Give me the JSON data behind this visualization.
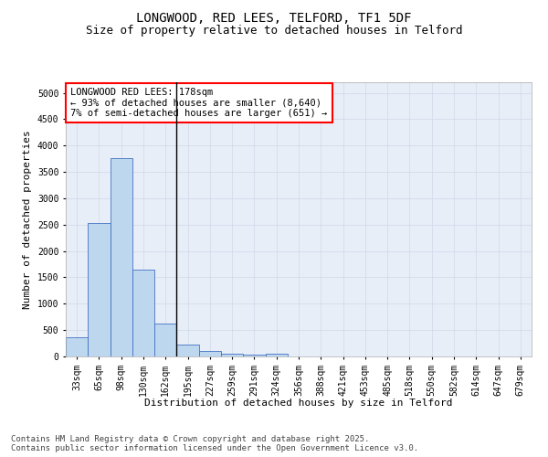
{
  "title1": "LONGWOOD, RED LEES, TELFORD, TF1 5DF",
  "title2": "Size of property relative to detached houses in Telford",
  "xlabel": "Distribution of detached houses by size in Telford",
  "ylabel": "Number of detached properties",
  "categories": [
    "33sqm",
    "65sqm",
    "98sqm",
    "130sqm",
    "162sqm",
    "195sqm",
    "227sqm",
    "259sqm",
    "291sqm",
    "324sqm",
    "356sqm",
    "388sqm",
    "421sqm",
    "453sqm",
    "485sqm",
    "518sqm",
    "550sqm",
    "582sqm",
    "614sqm",
    "647sqm",
    "679sqm"
  ],
  "values": [
    370,
    2530,
    3760,
    1650,
    620,
    225,
    105,
    45,
    35,
    55,
    0,
    0,
    0,
    0,
    0,
    0,
    0,
    0,
    0,
    0,
    0
  ],
  "bar_color": "#bdd7ee",
  "bar_edge_color": "#4472c4",
  "vline_color": "black",
  "vline_x_index": 4.5,
  "annotation_text": "LONGWOOD RED LEES: 178sqm\n← 93% of detached houses are smaller (8,640)\n7% of semi-detached houses are larger (651) →",
  "annotation_box_color": "white",
  "annotation_box_edge_color": "red",
  "ylim": [
    0,
    5200
  ],
  "yticks": [
    0,
    500,
    1000,
    1500,
    2000,
    2500,
    3000,
    3500,
    4000,
    4500,
    5000
  ],
  "grid_color": "#d0d8e8",
  "bg_color": "#e8eef8",
  "footer_text": "Contains HM Land Registry data © Crown copyright and database right 2025.\nContains public sector information licensed under the Open Government Licence v3.0.",
  "title1_fontsize": 10,
  "title2_fontsize": 9,
  "xlabel_fontsize": 8,
  "ylabel_fontsize": 8,
  "tick_fontsize": 7,
  "annotation_fontsize": 7.5,
  "footer_fontsize": 6.5
}
